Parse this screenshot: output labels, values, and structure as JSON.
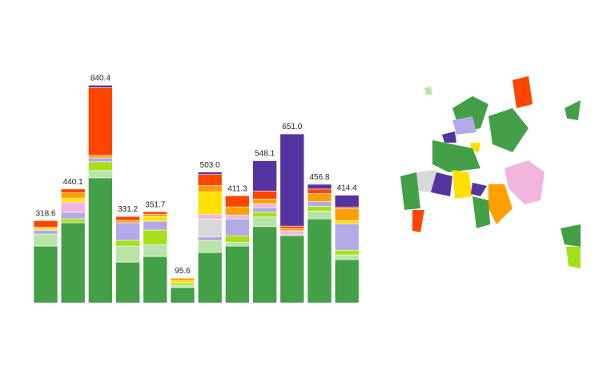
{
  "chart_data": {
    "type": "stacked_bar",
    "categories": [
      null,
      null,
      null,
      null,
      null,
      null,
      null,
      null,
      null,
      null,
      null,
      null
    ],
    "total_labels": [
      "318.6",
      "440.1",
      "840.4",
      "331.2",
      "351.7",
      "95.6",
      "503.0",
      "411.3",
      "548.1",
      "651.0",
      "456.8",
      "414.4"
    ],
    "ylim": [
      0,
      840
    ],
    "series": [
      {
        "color": "#43a047",
        "values": [
          219,
          309,
          482,
          157,
          179,
          59,
          194,
          219,
          294,
          259,
          324,
          167
        ]
      },
      {
        "color": "#b9e4a8",
        "values": [
          46,
          0,
          28,
          62,
          46,
          9,
          46,
          15,
          37,
          0,
          30,
          18
        ]
      },
      {
        "color": "#a6e01a",
        "values": [
          0,
          15,
          34,
          22,
          56,
          9,
          0,
          25,
          18,
          0,
          18,
          18
        ]
      },
      {
        "color": "#b3a9e6",
        "values": [
          15,
          25,
          15,
          68,
          34,
          0,
          15,
          65,
          18,
          4,
          18,
          102
        ]
      },
      {
        "color": "#d8d8d8",
        "values": [
          0,
          0,
          0,
          0,
          0,
          0,
          68,
          0,
          0,
          0,
          0,
          0
        ]
      },
      {
        "color": "#f2b6de",
        "values": [
          0,
          40,
          0,
          0,
          0,
          0,
          18,
          15,
          15,
          15,
          0,
          0
        ]
      },
      {
        "color": "#ffe000",
        "values": [
          6,
          15,
          0,
          0,
          18,
          9,
          86,
          0,
          0,
          0,
          0,
          12
        ]
      },
      {
        "color": "#ffa000",
        "values": [
          6,
          20,
          9,
          9,
          9,
          9,
          25,
          31,
          18,
          9,
          31,
          46
        ]
      },
      {
        "color": "#ff4500",
        "values": [
          25,
          15,
          262,
          15,
          9,
          0,
          43,
          43,
          31,
          9,
          18,
          6
        ]
      },
      {
        "color": "#5533a0",
        "values": [
          0,
          0,
          9,
          0,
          0,
          0,
          9,
          0,
          117,
          355,
          18,
          46
        ]
      }
    ]
  }
}
